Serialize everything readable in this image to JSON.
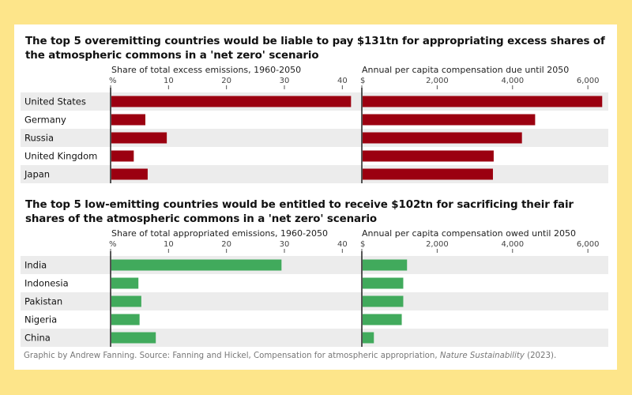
{
  "footer": {
    "credit": "Graphic by Andrew Fanning. Source: Fanning and Hickel, Compensation for atmospheric appropriation, ",
    "journal": "Nature Sustainability",
    "year": " (2023)."
  },
  "chart_data": [
    {
      "type": "bar",
      "title": "The top 5 overemitting countries would be liable to pay $131tn for appropriating excess shares of the atmospheric commons in a 'net zero' scenario",
      "categories": [
        "United States",
        "Germany",
        "Russia",
        "United Kingdom",
        "Japan"
      ],
      "color": "#9b0010",
      "panels": [
        {
          "label": "Share of total excess emissions, 1960-2050",
          "ticks": [
            0,
            10,
            20,
            30,
            40
          ],
          "tick_labels": [
            "%",
            "10",
            "20",
            "30",
            "40"
          ],
          "xlim": [
            0,
            42
          ],
          "values": [
            41.5,
            6.0,
            9.7,
            4.0,
            6.4
          ]
        },
        {
          "label": "Annual per capita compensation due until 2050",
          "ticks": [
            0,
            2000,
            4000,
            6000
          ],
          "tick_labels": [
            "$",
            "2,000",
            "4,000",
            "6,000"
          ],
          "xlim": [
            0,
            6500
          ],
          "values": [
            6380,
            4600,
            4250,
            3500,
            3480
          ]
        }
      ]
    },
    {
      "type": "bar",
      "title": "The top 5 low-emitting countries would be entitled to receive $102tn for sacrificing their fair shares of the atmospheric commons in a 'net zero' scenario",
      "categories": [
        "India",
        "Indonesia",
        "Pakistan",
        "Nigeria",
        "China"
      ],
      "color": "#41aa5c",
      "panels": [
        {
          "label": "Share of total appropriated emissions, 1960-2050",
          "ticks": [
            0,
            10,
            20,
            30,
            40
          ],
          "tick_labels": [
            "%",
            "10",
            "20",
            "30",
            "40"
          ],
          "xlim": [
            0,
            42
          ],
          "values": [
            29.5,
            4.8,
            5.3,
            5.0,
            7.8
          ]
        },
        {
          "label": "Annual per capita compensation owed until 2050",
          "ticks": [
            0,
            2000,
            4000,
            6000
          ],
          "tick_labels": [
            "$",
            "2,000",
            "4,000",
            "6,000"
          ],
          "xlim": [
            0,
            6500
          ],
          "values": [
            1200,
            1100,
            1100,
            1060,
            320
          ]
        }
      ]
    }
  ]
}
